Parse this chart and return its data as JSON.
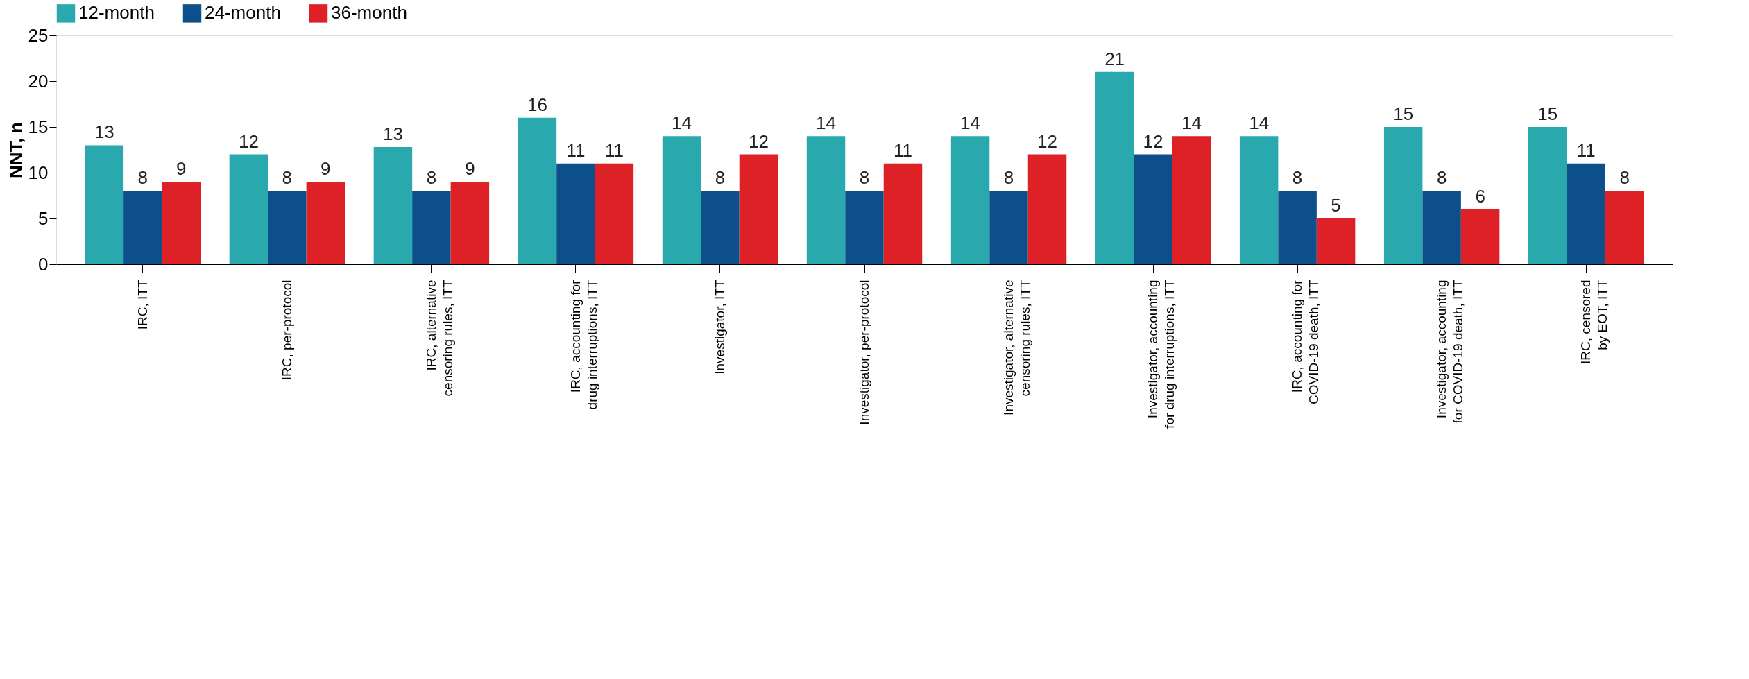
{
  "chart_data": {
    "type": "bar",
    "ylabel": "NNT, n",
    "categories": [
      "IRC, ITT",
      "IRC, per-protocol",
      "IRC, alternative\ncensoring rules, ITT",
      "IRC, accounting for\ndrug interruptions, ITT",
      "Investigator, ITT",
      "Investigator, per-protocol",
      "Investigator, alternative\ncensoring rules, ITT",
      "Investigator, accounting\nfor drug interruptions, ITT",
      "IRC, accounting for\nCOVID-19 death, ITT",
      "Investigator, accounting\nfor COVID-19 death, ITT",
      "IRC, censored\nby EOT, ITT"
    ],
    "series": [
      {
        "name": "12-month",
        "color": "#29a9ad",
        "values": [
          13,
          12,
          12.8,
          16,
          14,
          14,
          14,
          21,
          14,
          15,
          15
        ],
        "value_labels": [
          "13",
          "12",
          "13",
          "16",
          "14",
          "14",
          "14",
          "21",
          "14",
          "15",
          "15"
        ]
      },
      {
        "name": "24-month",
        "color": "#0d4f8b",
        "values": [
          8,
          8,
          8,
          11,
          8,
          8,
          8,
          12,
          8,
          8,
          11
        ],
        "value_labels": [
          "8",
          "8",
          "8",
          "11",
          "8",
          "8",
          "8",
          "12",
          "8",
          "8",
          "11"
        ]
      },
      {
        "name": "36-month",
        "color": "#de2027",
        "values": [
          9,
          9,
          9,
          11,
          12,
          11,
          12,
          14,
          5,
          6,
          8
        ],
        "value_labels": [
          "9",
          "9",
          "9",
          "11",
          "12",
          "11",
          "12",
          "14",
          "5",
          "6",
          "8"
        ]
      }
    ],
    "ylim": [
      0,
      25
    ],
    "yticks": [
      0,
      5,
      10,
      15,
      20,
      25
    ],
    "grid": false,
    "legend": "top"
  }
}
